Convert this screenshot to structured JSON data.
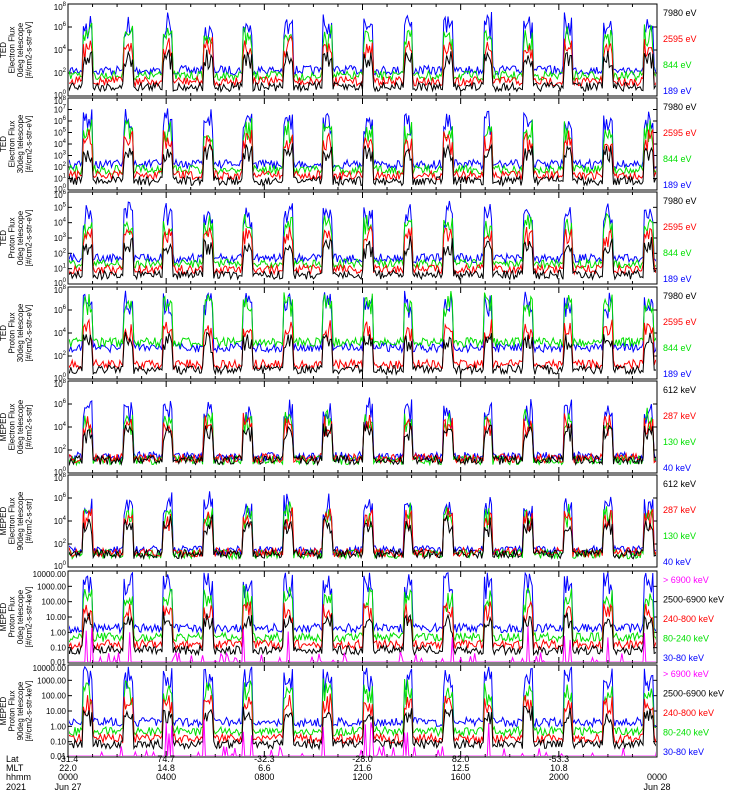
{
  "colors": {
    "blue": "#0000ff",
    "red": "#ff0000",
    "green": "#00e000",
    "black": "#000000",
    "magenta": "#ff00ff"
  },
  "panels": [
    {
      "ylabel": [
        "TED",
        "Electron Flux",
        "0deg telescope",
        "[#/cm2-s-str-eV]"
      ],
      "yticks": [
        "10^8",
        "10^6",
        "10^4",
        "10^2",
        "10^0"
      ],
      "legend": [
        {
          "text": "7980 eV",
          "color": "black"
        },
        {
          "text": "2595 eV",
          "color": "red"
        },
        {
          "text": "844 eV",
          "color": "green"
        },
        {
          "text": "189 eV",
          "color": "blue"
        }
      ]
    },
    {
      "ylabel": [
        "TED",
        "Electron Flux",
        "30deg telescope",
        "[#/cm2-s-str-eV]"
      ],
      "yticks": [
        "10^8",
        "10^7",
        "10^6",
        "10^5",
        "10^4",
        "10^3",
        "10^2",
        "10^1",
        "10^0"
      ],
      "legend": [
        {
          "text": "7980 eV",
          "color": "black"
        },
        {
          "text": "2595 eV",
          "color": "red"
        },
        {
          "text": "844 eV",
          "color": "green"
        },
        {
          "text": "189 eV",
          "color": "blue"
        }
      ]
    },
    {
      "ylabel": [
        "TED",
        "Proton Flux",
        "0deg telescope",
        "[#/cm2-s-str-eV]"
      ],
      "yticks": [
        "10^6",
        "10^5",
        "10^4",
        "10^3",
        "10^2",
        "10^1",
        "10^0"
      ],
      "legend": [
        {
          "text": "7980 eV",
          "color": "black"
        },
        {
          "text": "2595 eV",
          "color": "red"
        },
        {
          "text": "844 eV",
          "color": "green"
        },
        {
          "text": "189 eV",
          "color": "blue"
        }
      ]
    },
    {
      "ylabel": [
        "TED",
        "Proton Flux",
        "30deg telescope",
        "[#/cm2-s-str-eV]"
      ],
      "yticks": [
        "10^8",
        "10^6",
        "10^4",
        "10^2",
        "10^0"
      ],
      "legend": [
        {
          "text": "7980 eV",
          "color": "black"
        },
        {
          "text": "2595 eV",
          "color": "red"
        },
        {
          "text": "844 eV",
          "color": "green"
        },
        {
          "text": "189 eV",
          "color": "blue"
        }
      ]
    },
    {
      "ylabel": [
        "MEPED",
        "Electron Flux",
        "0deg telescope",
        "[#/cm2-s-str]"
      ],
      "yticks": [
        "10^8",
        "10^6",
        "10^4",
        "10^2",
        "10^0"
      ],
      "legend": [
        {
          "text": "612 keV",
          "color": "black"
        },
        {
          "text": "287 keV",
          "color": "red"
        },
        {
          "text": "130 keV",
          "color": "green"
        },
        {
          "text": "40 keV",
          "color": "blue"
        }
      ]
    },
    {
      "ylabel": [
        "MEPED",
        "Electron Flux",
        "90deg telescope",
        "[#/cm2-s-str]"
      ],
      "yticks": [
        "10^8",
        "10^6",
        "10^4",
        "10^2",
        "10^0"
      ],
      "legend": [
        {
          "text": "612 keV",
          "color": "black"
        },
        {
          "text": "287 keV",
          "color": "red"
        },
        {
          "text": "130 keV",
          "color": "green"
        },
        {
          "text": "40 keV",
          "color": "blue"
        }
      ]
    },
    {
      "ylabel": [
        "MEPED",
        "Proton Flux",
        "0deg telescope",
        "[#/cm2-s-str-keV]"
      ],
      "yticks": [
        "10000.00",
        "1000.00",
        "100.00",
        "10.00",
        "1.00",
        "0.10",
        "0.01"
      ],
      "legend": [
        {
          "text": "> 6900 keV",
          "color": "magenta"
        },
        {
          "text": "2500-6900 keV",
          "color": "black"
        },
        {
          "text": "240-800 keV",
          "color": "red"
        },
        {
          "text": "80-240 keV",
          "color": "green"
        },
        {
          "text": "30-80 keV",
          "color": "blue"
        }
      ]
    },
    {
      "ylabel": [
        "MEPED",
        "Proton Flux",
        "90deg telescope",
        "[#/cm2-s-str-keV]"
      ],
      "yticks": [
        "10000.00",
        "1000.00",
        "100.00",
        "10.00",
        "1.00",
        "0.10",
        "0.01"
      ],
      "legend": [
        {
          "text": "> 6900 keV",
          "color": "magenta"
        },
        {
          "text": "2500-6900 keV",
          "color": "black"
        },
        {
          "text": "240-800 keV",
          "color": "red"
        },
        {
          "text": "80-240 keV",
          "color": "green"
        },
        {
          "text": "30-80 keV",
          "color": "blue"
        }
      ]
    }
  ],
  "xaxis": {
    "row_labels": [
      "Lat",
      "MLT",
      "hhmm",
      "2021"
    ],
    "ticks": [
      {
        "lat": "-31.4",
        "mlt": "22.0",
        "hhmm": "0000",
        "date": "Jun 27"
      },
      {
        "lat": "74.7",
        "mlt": "14.8",
        "hhmm": "0400",
        "date": ""
      },
      {
        "lat": "-32.3",
        "mlt": "6.6",
        "hhmm": "0800",
        "date": ""
      },
      {
        "lat": "-28.0",
        "mlt": "21.6",
        "hhmm": "1200",
        "date": ""
      },
      {
        "lat": "82.0",
        "mlt": "12.5",
        "hhmm": "1600",
        "date": ""
      },
      {
        "lat": "-53.3",
        "mlt": "10.8",
        "hhmm": "2000",
        "date": ""
      },
      {
        "lat": "",
        "mlt": "",
        "hhmm": "0000",
        "date": "Jun 28"
      }
    ]
  },
  "chart_data": {
    "type": "line",
    "x_range_hours": [
      0,
      24
    ],
    "x_ticks_hours": [
      0,
      4,
      8,
      12,
      16,
      20,
      24
    ],
    "scale": "log",
    "panels": [
      {
        "ylim": [
          1,
          100000000
        ],
        "series": [
          "7980 eV",
          "2595 eV",
          "844 eV",
          "189 eV"
        ]
      },
      {
        "ylim": [
          1,
          100000000
        ],
        "series": [
          "7980 eV",
          "2595 eV",
          "844 eV",
          "189 eV"
        ]
      },
      {
        "ylim": [
          1,
          1000000
        ],
        "series": [
          "7980 eV",
          "2595 eV",
          "844 eV",
          "189 eV"
        ]
      },
      {
        "ylim": [
          1,
          100000000
        ],
        "series": [
          "7980 eV",
          "2595 eV",
          "844 eV",
          "189 eV"
        ]
      },
      {
        "ylim": [
          1,
          100000000
        ],
        "series": [
          "612 keV",
          "287 keV",
          "130 keV",
          "40 keV"
        ]
      },
      {
        "ylim": [
          1,
          100000000
        ],
        "series": [
          "612 keV",
          "287 keV",
          "130 keV",
          "40 keV"
        ]
      },
      {
        "ylim": [
          0.01,
          10000
        ],
        "series": [
          "> 6900 keV",
          "2500-6900 keV",
          "240-800 keV",
          "80-240 keV",
          "30-80 keV"
        ]
      },
      {
        "ylim": [
          0.01,
          10000
        ],
        "series": [
          "> 6900 keV",
          "2500-6900 keV",
          "240-800 keV",
          "80-240 keV",
          "30-80 keV"
        ]
      }
    ]
  }
}
